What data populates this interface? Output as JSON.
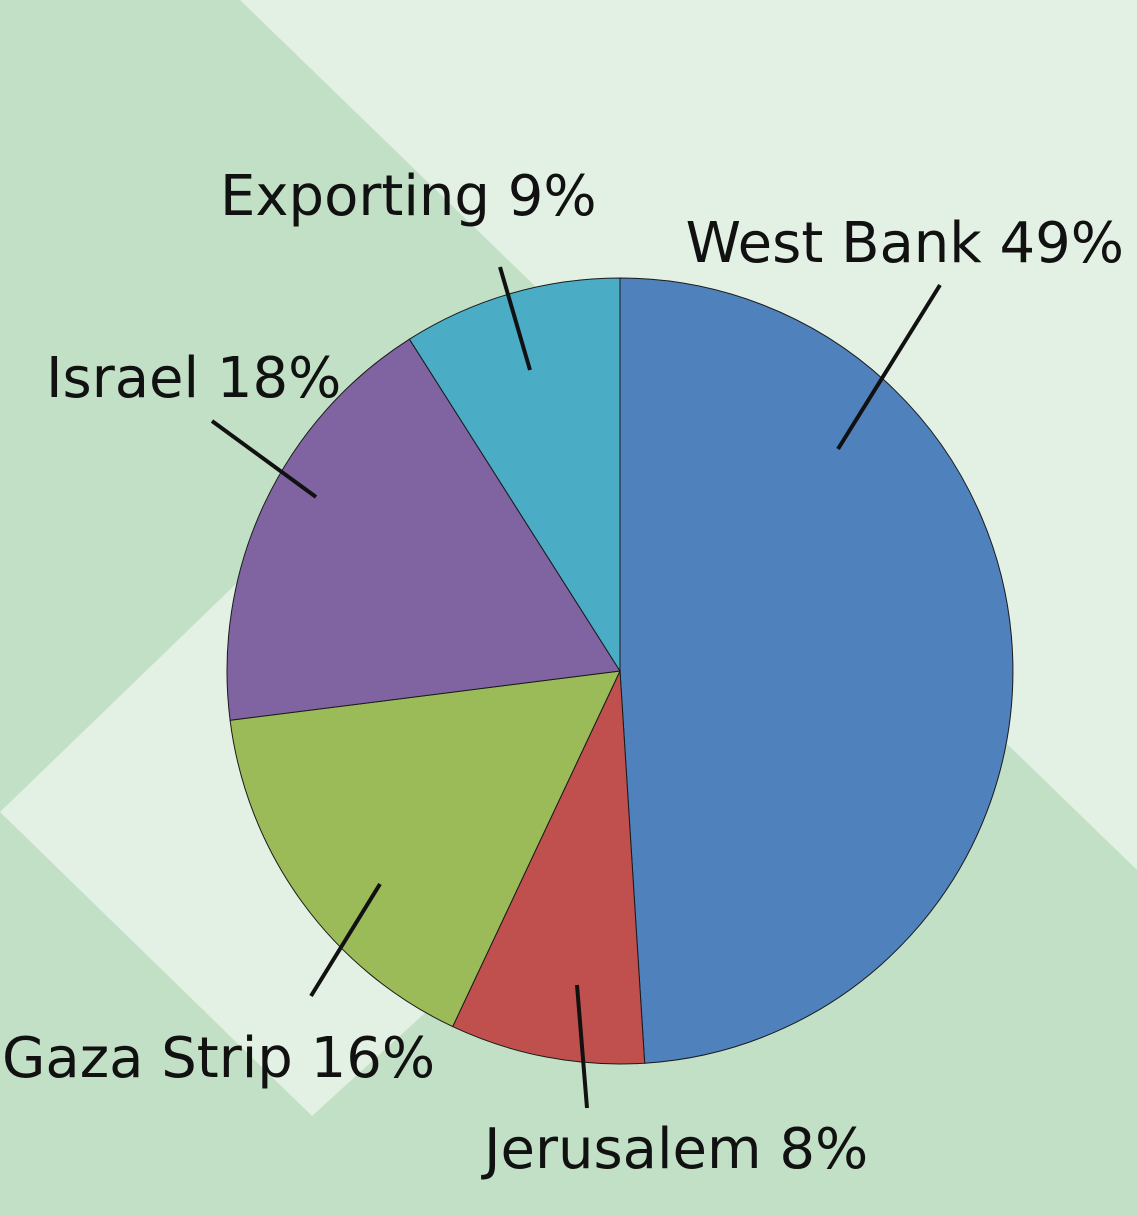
{
  "colors": {
    "background_dark": "#c2e0c6",
    "background_light": "#e3f0e4",
    "outline": "#1a1a1a"
  },
  "chart_data": {
    "type": "pie",
    "start": "12 o'clock",
    "direction": "clockwise",
    "slices": [
      {
        "label": "West Bank 49%",
        "value": 49,
        "color": "#4f81bd"
      },
      {
        "label": "Jerusalem 8%",
        "value": 8,
        "color": "#c0504d"
      },
      {
        "label": "Gaza Strip 16%",
        "value": 16,
        "color": "#9bbb59"
      },
      {
        "label": "Israel 18%",
        "value": 18,
        "color": "#8064a2"
      },
      {
        "label": "Exporting 9%",
        "value": 9,
        "color": "#4bacc6"
      }
    ]
  }
}
